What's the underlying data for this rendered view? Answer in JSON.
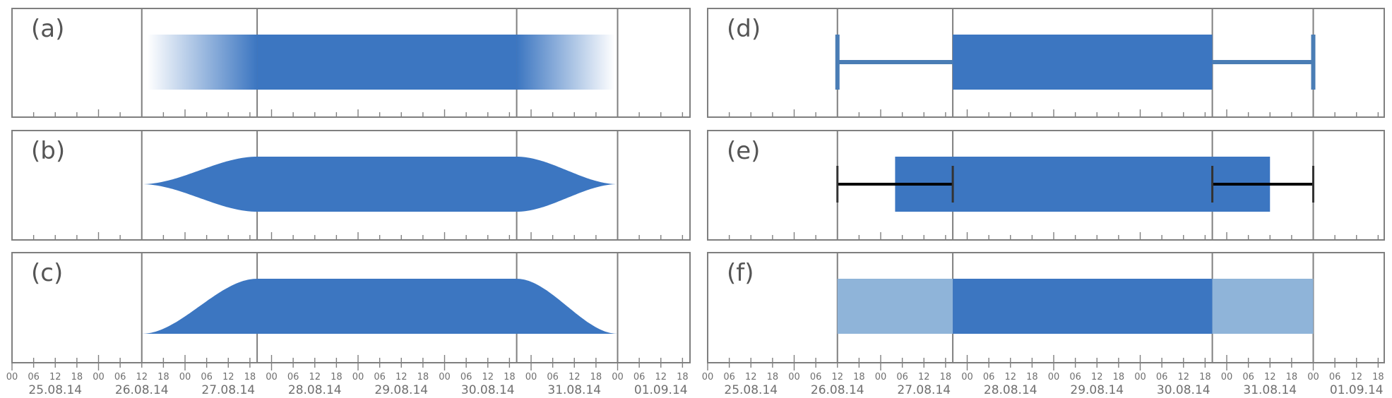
{
  "colors": {
    "core": "#3c76c1",
    "fringe_light": "#8fb4d9",
    "whisker_blue": "#4a7db5",
    "whisker_black": "#000000",
    "frame": "#7f7f7f",
    "text": "#555555",
    "axis_text": "#6f6f6f"
  },
  "time_axis": {
    "start": "2014-08-25T00:00",
    "end": "2014-09-01T21:00",
    "hour_labels": [
      "00",
      "06",
      "12",
      "18"
    ],
    "dates": [
      "25.08.14",
      "26.08.14",
      "27.08.14",
      "28.08.14",
      "29.08.14",
      "30.08.14",
      "31.08.14",
      "01.09.14"
    ]
  },
  "intervals": {
    "earliest_start": "2014-08-26T12:00",
    "latest_start": "2014-08-27T20:00",
    "earliest_end": "2014-08-30T20:00",
    "latest_end": "2014-09-01T00:00",
    "estimate_start": "2014-08-27T04:00",
    "estimate_end": "2014-08-31T12:00"
  },
  "panels": [
    {
      "id": "a",
      "label": "(a)",
      "style": "gradient"
    },
    {
      "id": "b",
      "label": "(b)",
      "style": "symmetric-taper"
    },
    {
      "id": "c",
      "label": "(c)",
      "style": "bottom-taper"
    },
    {
      "id": "d",
      "label": "(d)",
      "style": "whisker-blue"
    },
    {
      "id": "e",
      "label": "(e)",
      "style": "whisker-black"
    },
    {
      "id": "f",
      "label": "(f)",
      "style": "light-fringe"
    }
  ]
}
